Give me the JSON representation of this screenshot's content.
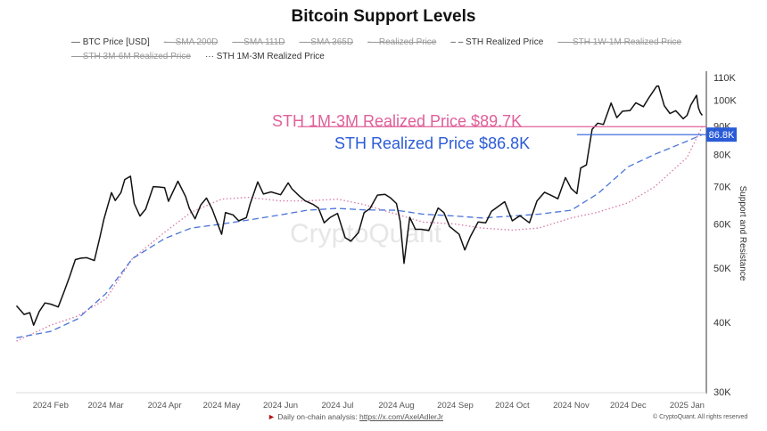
{
  "chart_data": {
    "type": "line",
    "title": "Bitcoin Support Levels",
    "ylabel": "Support and Resistance",
    "yscale": "log",
    "ylim": [
      30000,
      115000
    ],
    "yticks": [
      "30K",
      "40K",
      "50K",
      "60K",
      "70K",
      "80K",
      "90K",
      "100K",
      "110K"
    ],
    "ytick_values": [
      30000,
      40000,
      50000,
      60000,
      70000,
      80000,
      90000,
      100000,
      110000
    ],
    "xticks": [
      {
        "label": "2024 Feb",
        "date": "2024-02-01"
      },
      {
        "label": "2024 Mar",
        "date": "2024-03-01"
      },
      {
        "label": "2024 Apr",
        "date": "2024-04-01"
      },
      {
        "label": "2024 May",
        "date": "2024-05-01"
      },
      {
        "label": "2024 Jun",
        "date": "2024-06-01"
      },
      {
        "label": "2024 Jul",
        "date": "2024-07-01"
      },
      {
        "label": "2024 Aug",
        "date": "2024-08-01"
      },
      {
        "label": "2024 Sep",
        "date": "2024-09-01"
      },
      {
        "label": "2024 Oct",
        "date": "2024-10-01"
      },
      {
        "label": "2024 Nov",
        "date": "2024-11-01"
      },
      {
        "label": "2024 Dec",
        "date": "2024-12-01"
      },
      {
        "label": "2025 Jan",
        "date": "2025-01-01"
      }
    ],
    "grid": false,
    "legend_position": "top",
    "legend": [
      {
        "label": "BTC Price [USD]",
        "active": true,
        "style": "solid"
      },
      {
        "label": "SMA 200D",
        "active": false,
        "style": "dashdot"
      },
      {
        "label": "SMA 111D",
        "active": false,
        "style": "solid"
      },
      {
        "label": "SMA 365D",
        "active": false,
        "style": "solid"
      },
      {
        "label": "Realized Price",
        "active": false,
        "style": "dashdot"
      },
      {
        "label": "STH Realized Price",
        "active": true,
        "style": "dashed"
      },
      {
        "label": "STH 1W-1M Realized Price",
        "active": false,
        "style": "dashed"
      },
      {
        "label": "STH 3M-6M Realized Price",
        "active": false,
        "style": "dotted"
      },
      {
        "label": "STH 1M-3M Realized Price",
        "active": true,
        "style": "dotted"
      }
    ],
    "series": [
      {
        "name": "BTC Price [USD]",
        "color": "#111111",
        "style": "solid",
        "points": [
          [
            "2024-01-14",
            42.8
          ],
          [
            "2024-01-18",
            41.3
          ],
          [
            "2024-01-21",
            41.6
          ],
          [
            "2024-01-23",
            39.5
          ],
          [
            "2024-01-26",
            41.8
          ],
          [
            "2024-01-29",
            43.3
          ],
          [
            "2024-02-01",
            43.1
          ],
          [
            "2024-02-05",
            42.6
          ],
          [
            "2024-02-08",
            45.3
          ],
          [
            "2024-02-11",
            48.3
          ],
          [
            "2024-02-14",
            51.8
          ],
          [
            "2024-02-17",
            52.1
          ],
          [
            "2024-02-20",
            52.2
          ],
          [
            "2024-02-24",
            51.6
          ],
          [
            "2024-02-27",
            57.0
          ],
          [
            "2024-02-29",
            61.2
          ],
          [
            "2024-03-04",
            68.3
          ],
          [
            "2024-03-06",
            66.1
          ],
          [
            "2024-03-09",
            68.3
          ],
          [
            "2024-03-11",
            72.1
          ],
          [
            "2024-03-14",
            73.1
          ],
          [
            "2024-03-16",
            65.3
          ],
          [
            "2024-03-19",
            62.0
          ],
          [
            "2024-03-22",
            63.8
          ],
          [
            "2024-03-26",
            70.0
          ],
          [
            "2024-03-29",
            69.9
          ],
          [
            "2024-04-01",
            69.7
          ],
          [
            "2024-04-03",
            65.9
          ],
          [
            "2024-04-08",
            71.6
          ],
          [
            "2024-04-12",
            67.2
          ],
          [
            "2024-04-14",
            64.0
          ],
          [
            "2024-04-17",
            61.3
          ],
          [
            "2024-04-20",
            64.9
          ],
          [
            "2024-04-23",
            66.8
          ],
          [
            "2024-04-26",
            63.8
          ],
          [
            "2024-05-01",
            57.5
          ],
          [
            "2024-05-03",
            62.9
          ],
          [
            "2024-05-07",
            62.3
          ],
          [
            "2024-05-10",
            60.8
          ],
          [
            "2024-05-14",
            61.6
          ],
          [
            "2024-05-16",
            65.2
          ],
          [
            "2024-05-20",
            71.4
          ],
          [
            "2024-05-23",
            67.9
          ],
          [
            "2024-05-27",
            68.5
          ],
          [
            "2024-06-01",
            67.7
          ],
          [
            "2024-06-05",
            71.1
          ],
          [
            "2024-06-07",
            69.4
          ],
          [
            "2024-06-11",
            67.3
          ],
          [
            "2024-06-14",
            66.0
          ],
          [
            "2024-06-18",
            65.1
          ],
          [
            "2024-06-21",
            64.1
          ],
          [
            "2024-06-24",
            60.3
          ],
          [
            "2024-06-27",
            61.6
          ],
          [
            "2024-07-01",
            62.7
          ],
          [
            "2024-07-05",
            56.7
          ],
          [
            "2024-07-08",
            55.9
          ],
          [
            "2024-07-12",
            57.9
          ],
          [
            "2024-07-15",
            62.9
          ],
          [
            "2024-07-18",
            63.9
          ],
          [
            "2024-07-22",
            67.6
          ],
          [
            "2024-07-26",
            67.8
          ],
          [
            "2024-07-29",
            66.8
          ],
          [
            "2024-08-01",
            65.3
          ],
          [
            "2024-08-03",
            60.7
          ],
          [
            "2024-08-05",
            51.0
          ],
          [
            "2024-08-08",
            61.7
          ],
          [
            "2024-08-11",
            58.7
          ],
          [
            "2024-08-14",
            58.7
          ],
          [
            "2024-08-18",
            58.4
          ],
          [
            "2024-08-23",
            64.1
          ],
          [
            "2024-08-26",
            62.9
          ],
          [
            "2024-08-29",
            59.4
          ],
          [
            "2024-09-03",
            57.5
          ],
          [
            "2024-09-06",
            53.9
          ],
          [
            "2024-09-09",
            57.0
          ],
          [
            "2024-09-13",
            60.5
          ],
          [
            "2024-09-17",
            60.3
          ],
          [
            "2024-09-20",
            63.2
          ],
          [
            "2024-09-27",
            65.8
          ],
          [
            "2024-10-01",
            60.8
          ],
          [
            "2024-10-05",
            62.1
          ],
          [
            "2024-10-10",
            60.3
          ],
          [
            "2024-10-14",
            66.0
          ],
          [
            "2024-10-18",
            68.4
          ],
          [
            "2024-10-22",
            67.4
          ],
          [
            "2024-10-25",
            66.6
          ],
          [
            "2024-10-29",
            72.7
          ],
          [
            "2024-11-01",
            69.5
          ],
          [
            "2024-11-04",
            68.0
          ],
          [
            "2024-11-06",
            75.6
          ],
          [
            "2024-11-09",
            76.6
          ],
          [
            "2024-11-12",
            88.7
          ],
          [
            "2024-11-15",
            91.0
          ],
          [
            "2024-11-18",
            90.5
          ],
          [
            "2024-11-22",
            98.9
          ],
          [
            "2024-11-25",
            93.1
          ],
          [
            "2024-11-28",
            95.6
          ],
          [
            "2024-12-02",
            95.9
          ],
          [
            "2024-12-05",
            99.0
          ],
          [
            "2024-12-09",
            97.4
          ],
          [
            "2024-12-12",
            101.2
          ],
          [
            "2024-12-16",
            106.0
          ],
          [
            "2024-12-17",
            106.1
          ],
          [
            "2024-12-20",
            97.8
          ],
          [
            "2024-12-23",
            94.7
          ],
          [
            "2024-12-26",
            95.8
          ],
          [
            "2024-12-30",
            92.7
          ],
          [
            "2025-01-01",
            94.0
          ],
          [
            "2025-01-03",
            98.1
          ],
          [
            "2025-01-06",
            102.1
          ],
          [
            "2025-01-07",
            97.0
          ],
          [
            "2025-01-08",
            95.0
          ],
          [
            "2025-01-09",
            94.0
          ]
        ]
      },
      {
        "name": "STH Realized Price",
        "color": "#4a74d8",
        "style": "dashed",
        "points": [
          [
            "2024-01-14",
            37.5
          ],
          [
            "2024-02-01",
            38.5
          ],
          [
            "2024-02-15",
            40.5
          ],
          [
            "2024-03-01",
            45.0
          ],
          [
            "2024-03-15",
            52.0
          ],
          [
            "2024-04-01",
            56.5
          ],
          [
            "2024-04-15",
            59.0
          ],
          [
            "2024-05-01",
            60.0
          ],
          [
            "2024-05-15",
            61.0
          ],
          [
            "2024-06-01",
            62.3
          ],
          [
            "2024-06-15",
            63.5
          ],
          [
            "2024-07-01",
            64.0
          ],
          [
            "2024-07-15",
            63.6
          ],
          [
            "2024-08-01",
            63.5
          ],
          [
            "2024-08-15",
            62.5
          ],
          [
            "2024-09-01",
            62.0
          ],
          [
            "2024-09-15",
            61.5
          ],
          [
            "2024-10-01",
            62.0
          ],
          [
            "2024-10-15",
            62.5
          ],
          [
            "2024-11-01",
            63.5
          ],
          [
            "2024-11-15",
            68.0
          ],
          [
            "2024-12-01",
            76.0
          ],
          [
            "2024-12-15",
            80.0
          ],
          [
            "2025-01-01",
            84.5
          ],
          [
            "2025-01-09",
            86.8
          ]
        ]
      },
      {
        "name": "STH 1M-3M Realized Price",
        "color": "#d878a8",
        "style": "dotted",
        "points": [
          [
            "2024-01-14",
            37.0
          ],
          [
            "2024-02-01",
            39.5
          ],
          [
            "2024-02-15",
            41.0
          ],
          [
            "2024-03-01",
            44.0
          ],
          [
            "2024-03-15",
            52.0
          ],
          [
            "2024-04-01",
            58.0
          ],
          [
            "2024-04-15",
            63.0
          ],
          [
            "2024-05-01",
            66.5
          ],
          [
            "2024-05-15",
            67.0
          ],
          [
            "2024-06-01",
            66.0
          ],
          [
            "2024-06-15",
            66.0
          ],
          [
            "2024-07-01",
            66.5
          ],
          [
            "2024-07-15",
            65.0
          ],
          [
            "2024-08-01",
            62.5
          ],
          [
            "2024-08-15",
            60.5
          ],
          [
            "2024-09-01",
            60.0
          ],
          [
            "2024-09-15",
            59.0
          ],
          [
            "2024-10-01",
            58.5
          ],
          [
            "2024-10-15",
            59.0
          ],
          [
            "2024-11-01",
            61.5
          ],
          [
            "2024-11-15",
            63.0
          ],
          [
            "2024-12-01",
            65.5
          ],
          [
            "2024-12-15",
            70.0
          ],
          [
            "2025-01-01",
            79.0
          ],
          [
            "2025-01-09",
            89.7
          ]
        ]
      }
    ],
    "annotations": [
      {
        "text": "STH 1M-3M Realized Price $89.7K",
        "value": 89.7,
        "color": "#e0609a",
        "line_start": "2024-06-10"
      },
      {
        "text": "STH Realized Price $86.8K",
        "value": 86.8,
        "color": "#2a5bd7",
        "line_start": "2024-11-04"
      }
    ],
    "value_badge": {
      "text": "86.8K",
      "value": 86.8,
      "color": "#2a5bd7"
    },
    "watermark": "CryptoQuant"
  },
  "footer": {
    "analysis_label": "Daily on-chain analysis:",
    "analysis_link": "https://x.com/AxelAdlerJr",
    "copyright": "© CryptoQuant. All rights reserved"
  }
}
